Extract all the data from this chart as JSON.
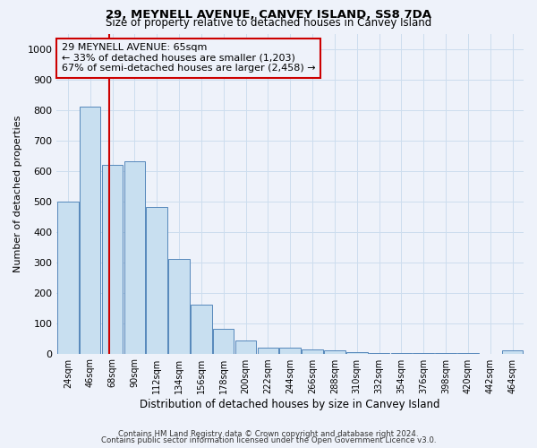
{
  "title": "29, MEYNELL AVENUE, CANVEY ISLAND, SS8 7DA",
  "subtitle": "Size of property relative to detached houses in Canvey Island",
  "xlabel": "Distribution of detached houses by size in Canvey Island",
  "ylabel": "Number of detached properties",
  "footer_line1": "Contains HM Land Registry data © Crown copyright and database right 2024.",
  "footer_line2": "Contains public sector information licensed under the Open Government Licence v3.0.",
  "property_label": "29 MEYNELL AVENUE: 65sqm",
  "annotation_line1": "← 33% of detached houses are smaller (1,203)",
  "annotation_line2": "67% of semi-detached houses are larger (2,458) →",
  "property_size_sqm": 65,
  "bar_categories": [
    "24sqm",
    "46sqm",
    "68sqm",
    "90sqm",
    "112sqm",
    "134sqm",
    "156sqm",
    "178sqm",
    "200sqm",
    "222sqm",
    "244sqm",
    "266sqm",
    "288sqm",
    "310sqm",
    "332sqm",
    "354sqm",
    "376sqm",
    "398sqm",
    "420sqm",
    "442sqm",
    "464sqm"
  ],
  "bar_values": [
    500,
    810,
    620,
    630,
    480,
    310,
    160,
    80,
    42,
    20,
    20,
    14,
    10,
    5,
    3,
    2,
    2,
    2,
    1,
    0,
    10
  ],
  "bar_color": "#c8dff0",
  "bar_edge_color": "#5588bb",
  "vline_color": "#cc0000",
  "annotation_box_edge_color": "#cc0000",
  "grid_color": "#ccddee",
  "bg_color": "#eef2fa",
  "ylim": [
    0,
    1050
  ],
  "yticks": [
    0,
    100,
    200,
    300,
    400,
    500,
    600,
    700,
    800,
    900,
    1000
  ]
}
